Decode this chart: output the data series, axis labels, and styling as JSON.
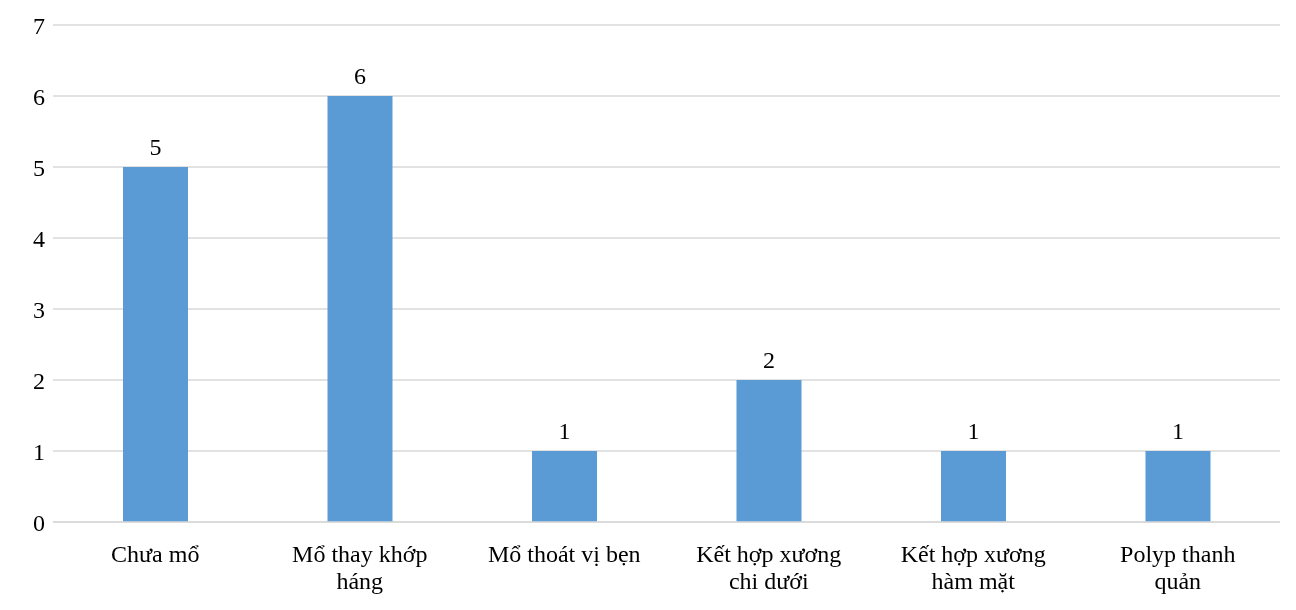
{
  "chart_data": {
    "type": "bar",
    "categories": [
      "Chưa mổ",
      "Mổ thay khớp háng",
      "Mổ thoát vị bẹn",
      "Kết hợp xương chi dưới",
      "Kết hợp xương hàm mặt",
      "Polyp thanh quản"
    ],
    "values": [
      5,
      6,
      1,
      2,
      1,
      1
    ],
    "color": "#5b9bd5",
    "ylim": [
      0,
      7
    ],
    "yticks": [
      0,
      1,
      2,
      3,
      4,
      5,
      6,
      7
    ],
    "grid": "y",
    "data_labels": true
  }
}
